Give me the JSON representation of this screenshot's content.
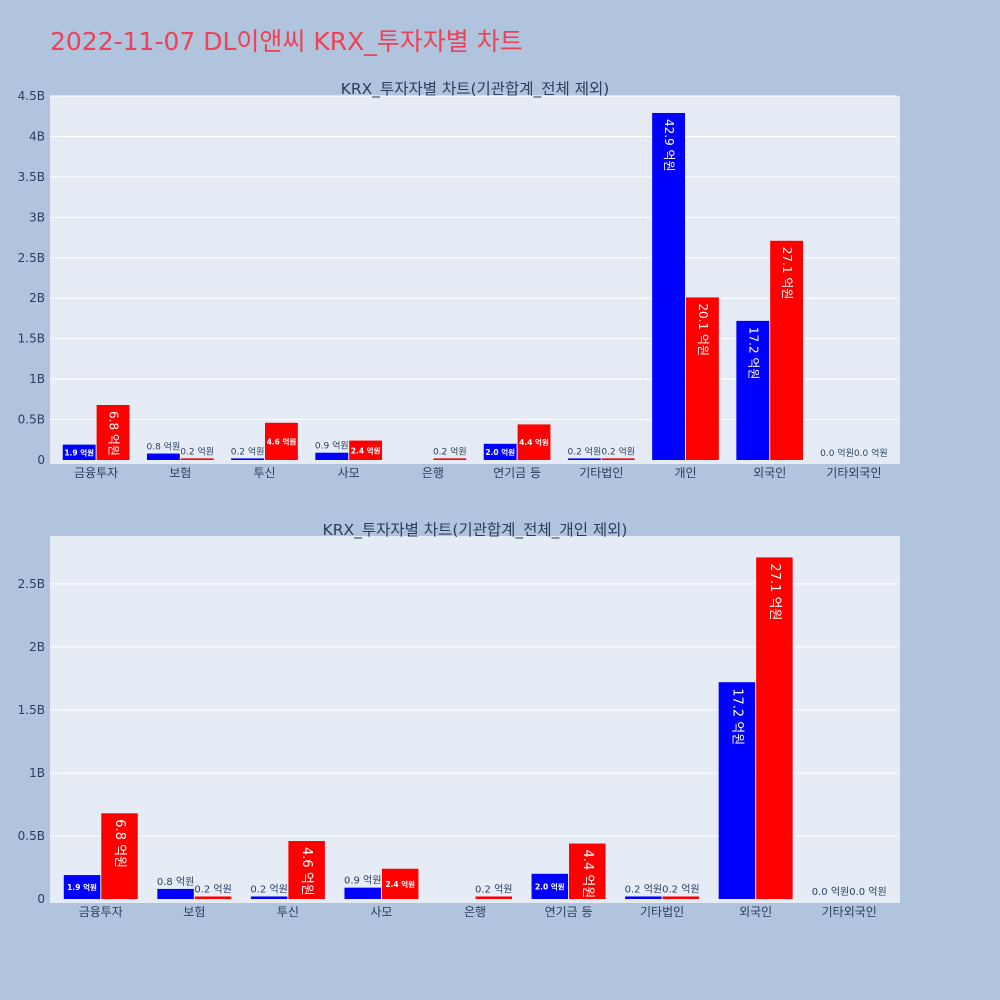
{
  "page": {
    "title": "2022-11-07 DL이앤씨 KRX_투자자별 차트"
  },
  "colors": {
    "background": "#b0c4de",
    "plot_bg": "#e5ecf6",
    "grid": "#ffffff",
    "title": "#ef4156",
    "text": "#2a3f5f",
    "series_buy": "#0000ff",
    "series_sell": "#ff0000"
  },
  "chart_data": [
    {
      "type": "bar",
      "title": "KRX_투자자별 차트(기관합계_전체 제외)",
      "categories": [
        "금융투자",
        "보험",
        "투신",
        "사모",
        "은행",
        "연기금 등",
        "기타법인",
        "개인",
        "외국인",
        "기타외국인"
      ],
      "series": [
        {
          "name": "buy",
          "color": "#0000ff",
          "values": [
            190000000,
            80000000,
            20000000,
            90000000,
            0,
            200000000,
            20000000,
            4290000000,
            1720000000,
            0
          ],
          "labels": [
            "1.9 억원",
            "0.8 억원",
            "0.2 억원",
            "0.9 억원",
            "",
            "2.0 억원",
            "0.2 억원",
            "42.9 억원",
            "17.2 억원",
            "0.0 억원"
          ]
        },
        {
          "name": "sell",
          "color": "#ff0000",
          "values": [
            680000000,
            20000000,
            460000000,
            240000000,
            20000000,
            440000000,
            20000000,
            2010000000,
            2710000000,
            0
          ],
          "labels": [
            "6.8 억원",
            "0.2 억원",
            "4.6 억원",
            "2.4 억원",
            "0.2 억원",
            "4.4 억원",
            "0.2 억원",
            "20.1 억원",
            "27.1 억원",
            "0.0 억원"
          ]
        }
      ],
      "ylim": [
        0,
        4500000000
      ],
      "yticks": [
        0,
        500000000,
        1000000000,
        1500000000,
        2000000000,
        2500000000,
        3000000000,
        3500000000,
        4000000000,
        4500000000
      ],
      "ytick_labels": [
        "0",
        "0.5B",
        "1B",
        "1.5B",
        "2B",
        "2.5B",
        "3B",
        "3.5B",
        "4B",
        "4.5B"
      ],
      "grid": true
    },
    {
      "type": "bar",
      "title": "KRX_투자자별 차트(기관합계_전체_개인 제외)",
      "categories": [
        "금융투자",
        "보험",
        "투신",
        "사모",
        "은행",
        "연기금 등",
        "기타법인",
        "외국인",
        "기타외국인"
      ],
      "series": [
        {
          "name": "buy",
          "color": "#0000ff",
          "values": [
            190000000,
            80000000,
            20000000,
            90000000,
            0,
            200000000,
            20000000,
            1720000000,
            0
          ],
          "labels": [
            "1.9 억원",
            "0.8 억원",
            "0.2 억원",
            "0.9 억원",
            "",
            "2.0 억원",
            "0.2 억원",
            "17.2 억원",
            "0.0 억원"
          ]
        },
        {
          "name": "sell",
          "color": "#ff0000",
          "values": [
            680000000,
            20000000,
            460000000,
            240000000,
            20000000,
            440000000,
            20000000,
            2710000000,
            0
          ],
          "labels": [
            "6.8 억원",
            "0.2 억원",
            "4.6 억원",
            "2.4 억원",
            "0.2 억원",
            "4.4 억원",
            "0.2 억원",
            "27.1 억원",
            "0.0 억원"
          ]
        }
      ],
      "ylim": [
        0,
        2880000000
      ],
      "yticks": [
        0,
        500000000,
        1000000000,
        1500000000,
        2000000000,
        2500000000
      ],
      "ytick_labels": [
        "0",
        "0.5B",
        "1B",
        "1.5B",
        "2B",
        "2.5B"
      ],
      "grid": true
    }
  ]
}
